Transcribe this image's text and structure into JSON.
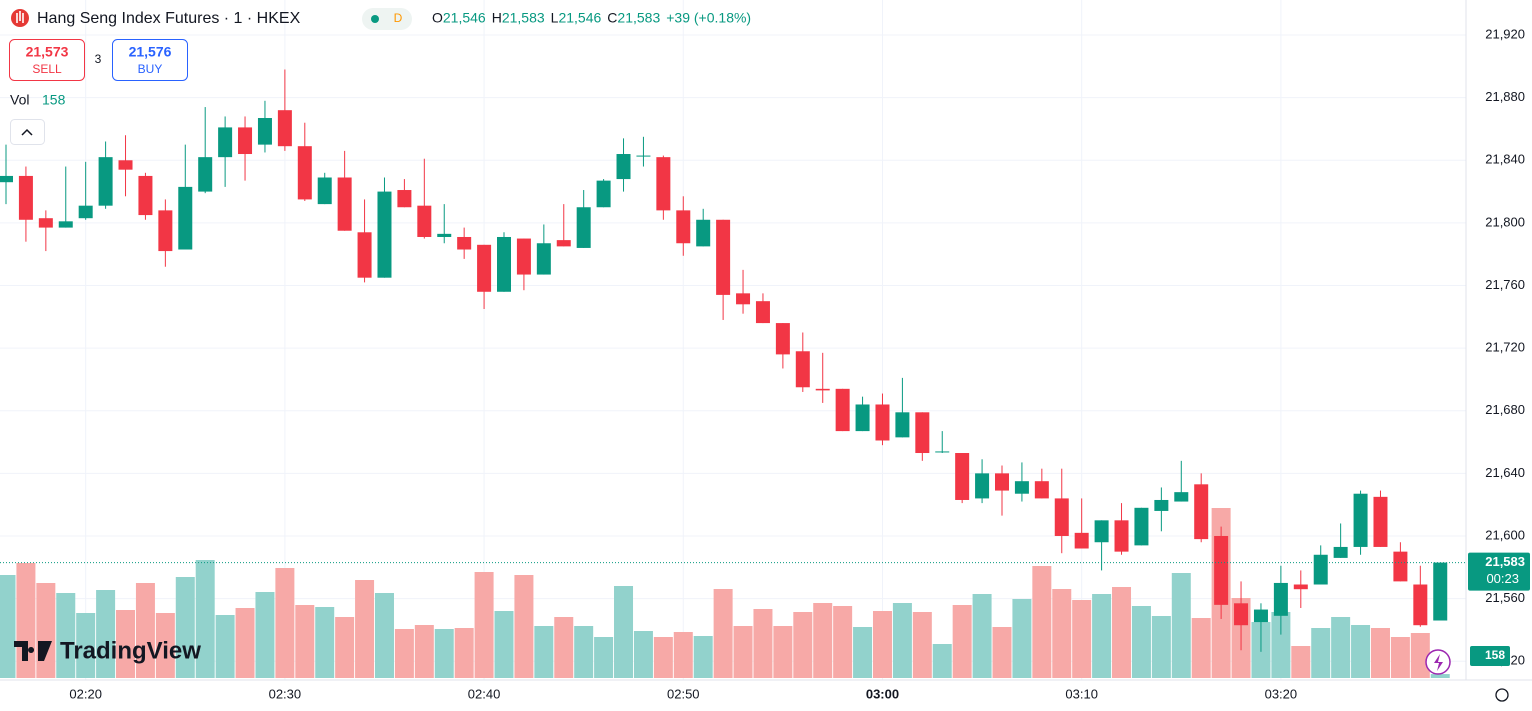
{
  "chart_data": {
    "type": "candlestick",
    "title": "Hang Seng Index Futures · 1 · HKEX",
    "interval_badge": "D",
    "legend": {
      "o": "O",
      "open": "21,546",
      "h": "H",
      "high": "21,583",
      "l": "L",
      "low": "21,546",
      "c": "C",
      "close": "21,583",
      "change": "+39 (+0.18%)",
      "vol": "Vol",
      "volume": "158"
    },
    "trade": {
      "sell_price": "21,573",
      "sell": "SELL",
      "spread": "3",
      "buy_price": "21,576",
      "buy": "BUY"
    },
    "watermark": "TradingView",
    "up_color": "#089981",
    "down_color": "#f23645",
    "up_volume_color": "#92d2cc",
    "down_volume_color": "#f7a9a7",
    "open": [
      21826,
      21830,
      21803,
      21797,
      21803,
      21811,
      21840,
      21830,
      21808,
      21783,
      21820,
      21842,
      21861,
      21850,
      21872,
      21849,
      21812,
      21829,
      21794,
      21765,
      21821,
      21811,
      21791,
      21791,
      21786,
      21756,
      21790,
      21767,
      21789,
      21784,
      21810,
      21828,
      21843,
      21842,
      21808,
      21785,
      21802,
      21755,
      21750,
      21736,
      21718,
      21694,
      21694,
      21667,
      21684,
      21663,
      21679,
      21654,
      21653,
      21624,
      21640,
      21627,
      21635,
      21624,
      21602,
      21596,
      21610,
      21594,
      21616,
      21622,
      21633,
      21600,
      21557,
      21545,
      21549,
      21569,
      21569,
      21586,
      21593,
      21625,
      21590,
      21569,
      21546
    ],
    "high": [
      21850,
      21836,
      21808,
      21836,
      21839,
      21852,
      21856,
      21832,
      21815,
      21850,
      21874,
      21868,
      21868,
      21878,
      21898,
      21864,
      21832,
      21846,
      21815,
      21829,
      21828,
      21841,
      21812,
      21797,
      21786,
      21794,
      21790,
      21799,
      21812,
      21821,
      21828,
      21854,
      21855,
      21843,
      21817,
      21809,
      21802,
      21770,
      21755,
      21736,
      21730,
      21717,
      21694,
      21689,
      21691,
      21701,
      21679,
      21667,
      21653,
      21649,
      21645,
      21647,
      21643,
      21643,
      21624,
      21610,
      21621,
      21618,
      21631,
      21648,
      21640,
      21606,
      21571,
      21557,
      21581,
      21578,
      21594,
      21608,
      21629,
      21629,
      21596,
      21581,
      21583
    ],
    "low": [
      21812,
      21788,
      21782,
      21797,
      21802,
      21809,
      21817,
      21802,
      21772,
      21783,
      21819,
      21823,
      21827,
      21845,
      21846,
      21814,
      21812,
      21795,
      21762,
      21765,
      21810,
      21790,
      21787,
      21777,
      21745,
      21756,
      21757,
      21767,
      21785,
      21784,
      21810,
      21820,
      21836,
      21802,
      21779,
      21785,
      21738,
      21742,
      21736,
      21707,
      21692,
      21685,
      21667,
      21667,
      21658,
      21663,
      21648,
      21653,
      21621,
      21621,
      21613,
      21622,
      21624,
      21589,
      21592,
      21578,
      21588,
      21594,
      21603,
      21622,
      21596,
      21547,
      21527,
      21526,
      21537,
      21554,
      21569,
      21586,
      21588,
      21593,
      21571,
      21542,
      21546
    ],
    "close": [
      21830,
      21802,
      21797,
      21801,
      21811,
      21842,
      21834,
      21805,
      21782,
      21823,
      21842,
      21861,
      21844,
      21867,
      21849,
      21815,
      21829,
      21795,
      21765,
      21820,
      21810,
      21791,
      21793,
      21783,
      21756,
      21791,
      21767,
      21787,
      21785,
      21810,
      21827,
      21844,
      21843,
      21808,
      21787,
      21802,
      21754,
      21748,
      21736,
      21716,
      21695,
      21693,
      21667,
      21684,
      21661,
      21679,
      21653,
      21654,
      21623,
      21640,
      21629,
      21635,
      21624,
      21600,
      21592,
      21610,
      21590,
      21618,
      21623,
      21628,
      21598,
      21556,
      21543,
      21553,
      21570,
      21566,
      21588,
      21593,
      21627,
      21593,
      21571,
      21543,
      21583
    ],
    "volume": [
      4120,
      4600,
      3800,
      3400,
      2600,
      3520,
      2720,
      3800,
      2600,
      4040,
      4720,
      2520,
      2800,
      3440,
      4400,
      2920,
      2840,
      2440,
      3920,
      3400,
      1960,
      2120,
      1960,
      2000,
      4240,
      2680,
      4120,
      2080,
      2440,
      2080,
      1640,
      3680,
      1880,
      1640,
      1840,
      1680,
      3560,
      2080,
      2760,
      2080,
      2640,
      3000,
      2880,
      2040,
      2680,
      3000,
      2640,
      1360,
      2920,
      3360,
      2040,
      3160,
      4480,
      3560,
      3120,
      3360,
      3640,
      2880,
      2480,
      4200,
      2400,
      6800,
      3200,
      2240,
      2640,
      1280,
      2000,
      2440,
      2120,
      2000,
      1640,
      1800,
      158
    ],
    "ylim": [
      21508,
      21936
    ],
    "yticks": [
      {
        "value": 21520,
        "label": "21,520"
      },
      {
        "value": 21560,
        "label": "21,560"
      },
      {
        "value": 21600,
        "label": "21,600"
      },
      {
        "value": 21640,
        "label": "21,640"
      },
      {
        "value": 21680,
        "label": "21,680"
      },
      {
        "value": 21720,
        "label": "21,720"
      },
      {
        "value": 21760,
        "label": "21,760"
      },
      {
        "value": 21800,
        "label": "21,800"
      },
      {
        "value": 21840,
        "label": "21,840"
      },
      {
        "value": 21880,
        "label": "21,880"
      },
      {
        "value": 21920,
        "label": "21,920"
      }
    ],
    "volume_lim": [
      0,
      5000
    ],
    "xticks": [
      {
        "value": 4,
        "label": "02:20"
      },
      {
        "value": 14,
        "label": "02:30"
      },
      {
        "value": 24,
        "label": "02:40"
      },
      {
        "value": 34,
        "label": "02:50"
      },
      {
        "value": 44,
        "label": "03:00"
      },
      {
        "value": 54,
        "label": "03:10"
      },
      {
        "value": 64,
        "label": "03:20"
      }
    ],
    "bold_xtick": 4,
    "last_price": {
      "value": 21583,
      "label": "21,583"
    },
    "countdown": "00:23",
    "grid": true
  }
}
